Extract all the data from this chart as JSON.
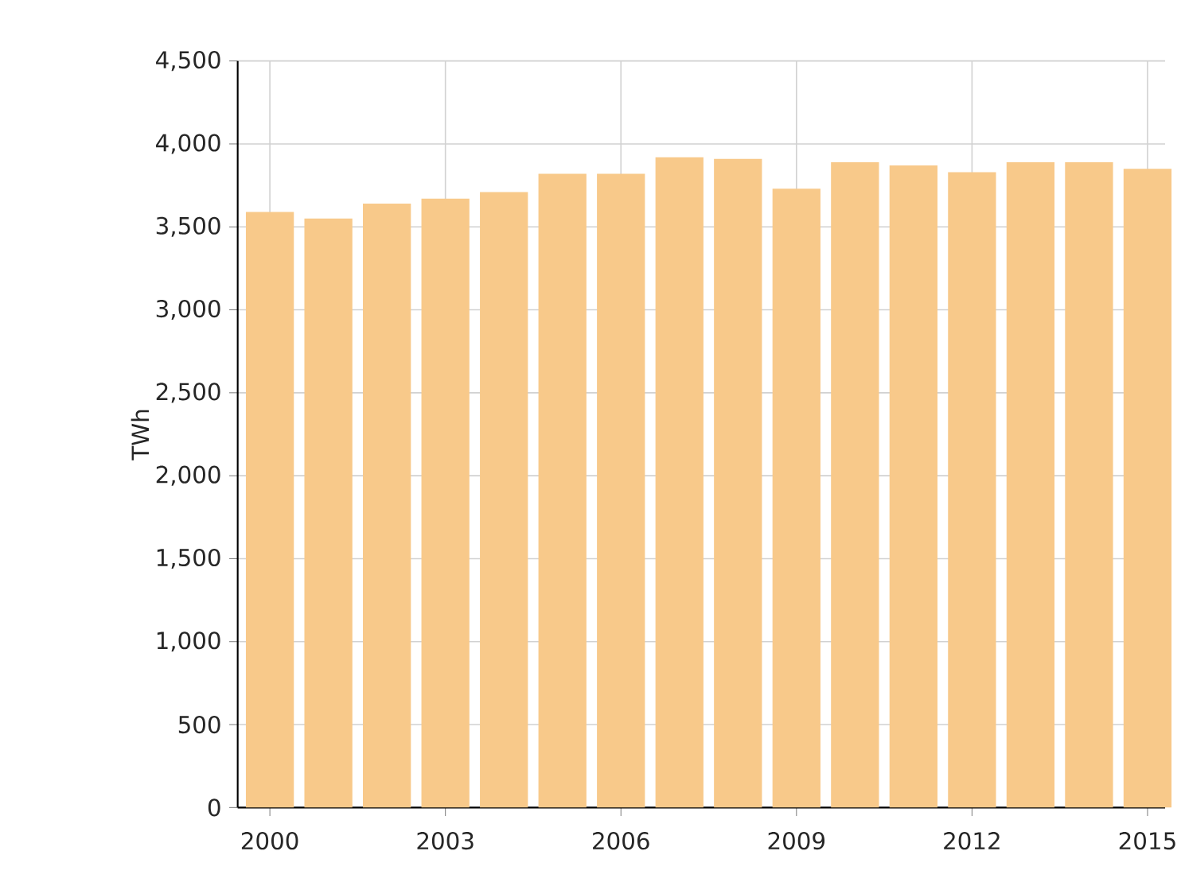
{
  "chart_data": {
    "type": "bar",
    "ylabel": "TWh",
    "x": [
      2000,
      2001,
      2002,
      2003,
      2004,
      2005,
      2006,
      2007,
      2008,
      2009,
      2010,
      2011,
      2012,
      2013,
      2014,
      2015
    ],
    "values": [
      3590,
      3550,
      3640,
      3670,
      3710,
      3820,
      3820,
      3920,
      3910,
      3730,
      3890,
      3870,
      3830,
      3890,
      3890,
      3850
    ],
    "color": "#f8c98a",
    "xlim": [
      1999.45,
      2015.3
    ],
    "xticks": [
      2000,
      2003,
      2006,
      2009,
      2012,
      2015
    ],
    "ylim": [
      0,
      4500
    ],
    "yticks": [
      0,
      500,
      {
        "value": 1000,
        "label": "1,000"
      },
      {
        "value": 1500,
        "label": "1,500"
      },
      {
        "value": 2000,
        "label": "2,000"
      },
      {
        "value": 2500,
        "label": "2,500"
      },
      {
        "value": 3000,
        "label": "3,000"
      },
      {
        "value": 3500,
        "label": "3,500"
      },
      {
        "value": 4000,
        "label": "4,000"
      },
      {
        "value": 4500,
        "label": "4,500"
      }
    ],
    "grid": true
  }
}
